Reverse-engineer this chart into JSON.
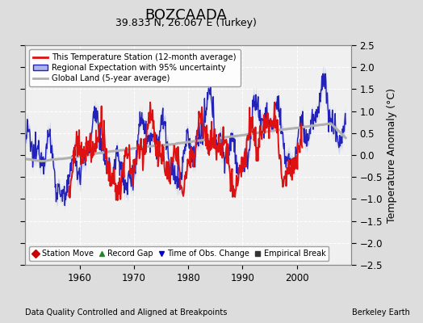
{
  "title": "BOZCAADA",
  "subtitle": "39.833 N, 26.067 E (Turkey)",
  "ylabel": "Temperature Anomaly (°C)",
  "xlim": [
    1950,
    2010
  ],
  "ylim": [
    -2.5,
    2.5
  ],
  "yticks": [
    -2.5,
    -2,
    -1.5,
    -1,
    -0.5,
    0,
    0.5,
    1,
    1.5,
    2,
    2.5
  ],
  "xticks": [
    1960,
    1970,
    1980,
    1990,
    2000
  ],
  "footer_left": "Data Quality Controlled and Aligned at Breakpoints",
  "footer_right": "Berkeley Earth",
  "legend_items": [
    {
      "label": "This Temperature Station (12-month average)",
      "color": "#cc0000",
      "lw": 2
    },
    {
      "label": "Regional Expectation with 95% uncertainty",
      "color": "#4444cc",
      "lw": 2
    },
    {
      "label": "Global Land (5-year average)",
      "color": "#aaaaaa",
      "lw": 2
    }
  ],
  "marker_legend": [
    {
      "label": "Station Move",
      "marker": "D",
      "color": "#cc0000"
    },
    {
      "label": "Record Gap",
      "marker": "^",
      "color": "#228822"
    },
    {
      "label": "Time of Obs. Change",
      "marker": "v",
      "color": "#0000cc"
    },
    {
      "label": "Empirical Break",
      "marker": "s",
      "color": "#333333"
    }
  ],
  "background_color": "#dddddd",
  "plot_bg_color": "#f0f0f0",
  "grid_color": "#ffffff",
  "title_fontsize": 13,
  "subtitle_fontsize": 9,
  "tick_fontsize": 8.5,
  "label_fontsize": 9
}
